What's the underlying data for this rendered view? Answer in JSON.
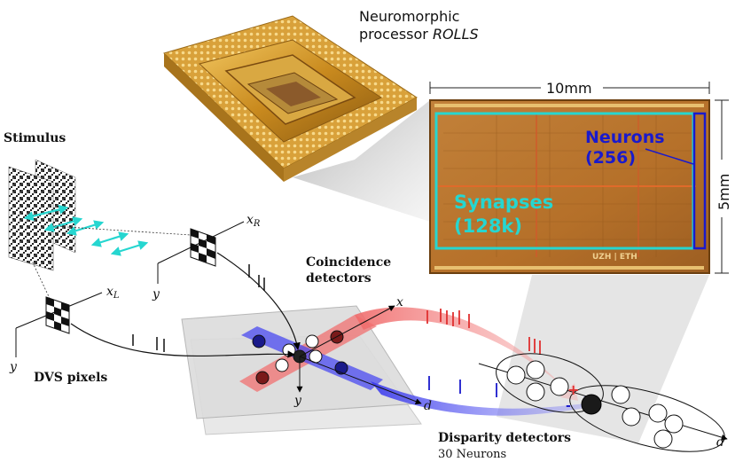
{
  "chip": {
    "title_line1": "Neuromorphic",
    "title_line2_prefix": "processor ",
    "title_line2_italic": "ROLLS"
  },
  "die": {
    "width_label": "10mm",
    "height_label": "5mm",
    "neurons_label_1": "Neurons",
    "neurons_label_2": "(256)",
    "synapses_label_1": "Synapses",
    "synapses_label_2": "(128k)",
    "logo_text": "UZH | ETH"
  },
  "stimulus": {
    "label": "Stimulus"
  },
  "dvs": {
    "label": "DVS pixels",
    "left_axis_x": "x",
    "left_axis_x_sub": "L",
    "left_axis_y": "y",
    "right_axis_x": "x",
    "right_axis_x_sub": "R",
    "right_axis_y": "y"
  },
  "coincidence": {
    "label_1": "Coincidence",
    "label_2": "detectors",
    "axis_x": "x",
    "axis_y": "y",
    "axis_d": "d"
  },
  "disparity": {
    "label": "Disparity detectors",
    "sublabel": "30 Neurons",
    "axis_d": "d",
    "plus": "+",
    "minus": "-"
  },
  "colors": {
    "cyan": "#26d6d0",
    "blue": "#1a1acc",
    "red": "#e03030",
    "chip_gold": "#c98a1e",
    "die_orange": "#b8772a"
  }
}
